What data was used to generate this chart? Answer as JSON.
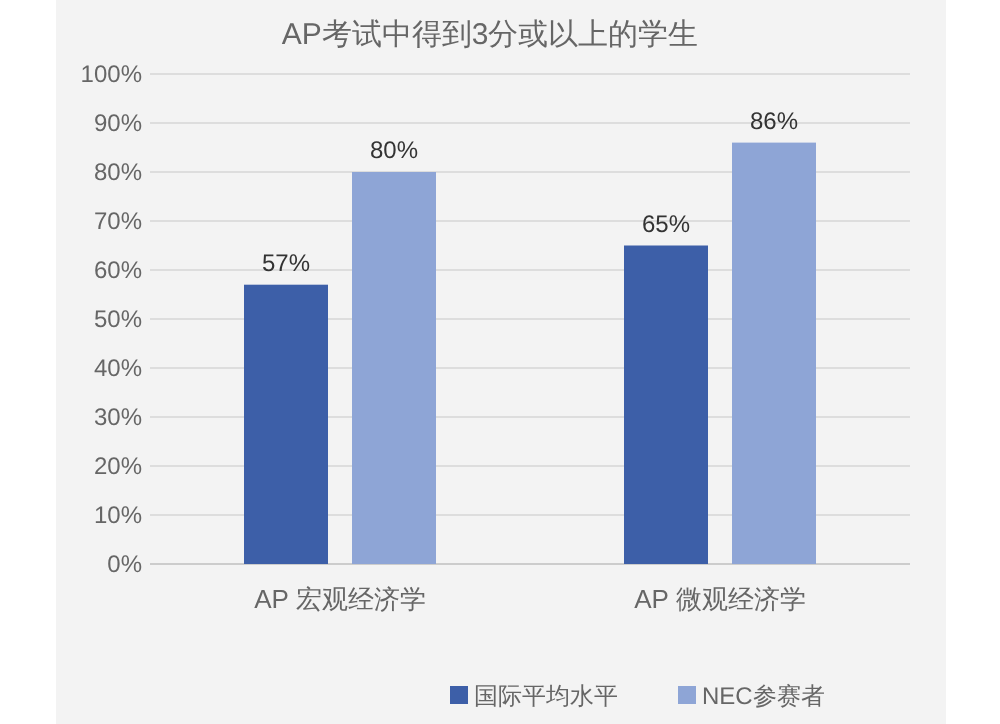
{
  "chart_data": {
    "type": "bar",
    "title": "AP考试中得到3分或以上的学生",
    "categories": [
      "AP 宏观经济学",
      "AP 微观经济学"
    ],
    "series": [
      {
        "name": "国际平均水平",
        "color": "#3d5fa8",
        "values": [
          57,
          65
        ]
      },
      {
        "name": "NEC参赛者",
        "color": "#8ea5d6",
        "values": [
          80,
          86
        ]
      }
    ],
    "ylim": [
      0,
      100
    ],
    "yticks": [
      {
        "value": 0,
        "label": "0%"
      },
      {
        "value": 10,
        "label": "10%"
      },
      {
        "value": 20,
        "label": "20%"
      },
      {
        "value": 30,
        "label": "30%"
      },
      {
        "value": 40,
        "label": "40%"
      },
      {
        "value": 50,
        "label": "50%"
      },
      {
        "value": 60,
        "label": "60%"
      },
      {
        "value": 70,
        "label": "70%"
      },
      {
        "value": 80,
        "label": "80%"
      },
      {
        "value": 90,
        "label": "90%"
      },
      {
        "value": 100,
        "label": "100%"
      }
    ],
    "value_labels": [
      [
        "57%",
        "65%"
      ],
      [
        "80%",
        "86%"
      ]
    ],
    "grid": "y",
    "legend": "bottom"
  }
}
